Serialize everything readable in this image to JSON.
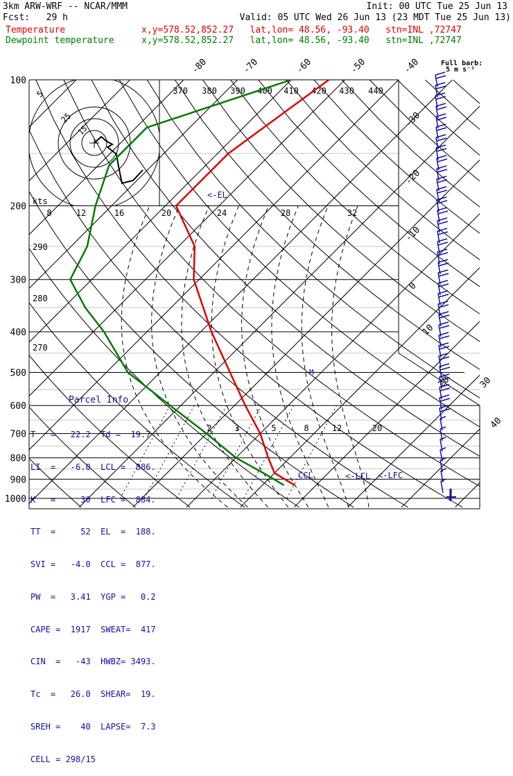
{
  "header": {
    "line1_left": "3km ARW-WRF -- NCAR/MMM",
    "line1_right": "Init: 00 UTC Tue 25 Jun 13",
    "line2_left": "Fcst:   29 h",
    "line2_right": "Valid: 05 UTC Wed 26 Jun 13 (23 MDT Tue 25 Jun 13)",
    "temp_label": "Temperature",
    "temp_info": "x,y=578.52,852.27   lat,lon= 48.56, -93.40   stn=INL ,72747",
    "dew_label": "Dewpoint temperature",
    "dew_info": "x,y=578.52,852.27   lat,lon= 48.56, -93.40   stn=INL ,72747"
  },
  "barb_legend": [
    "Full barb:",
    "5 m s⁻¹"
  ],
  "colors": {
    "temperature": "#e00000",
    "dewpoint": "#007a00",
    "barbs": "#1010a0",
    "info": "#1010a0"
  },
  "chart_data": {
    "type": "skew-t log-p",
    "y_axis_pressure_labels": [
      "100",
      "200",
      "300",
      "400",
      "500",
      "600",
      "700",
      "800",
      "900",
      "1000"
    ],
    "pressure_levels_hPa": [
      100,
      200,
      300,
      400,
      500,
      600,
      700,
      800,
      900,
      1000
    ],
    "isotherm_labels": [
      "-80",
      "-70",
      "-60",
      "-50",
      "-40",
      "-30",
      "-20",
      "-10",
      "0",
      "10",
      "20",
      "30",
      "40"
    ],
    "theta_labels": [
      "370",
      "380",
      "390",
      "400",
      "410",
      "420",
      "430",
      "440"
    ],
    "mixing_ratio_labels": [
      "2",
      "3",
      "5",
      "8",
      "12",
      "20"
    ],
    "upper_labels": [
      "8",
      "12",
      "16",
      "20",
      "24",
      "28",
      "32"
    ],
    "left_labels": [
      "290",
      "280",
      "270"
    ],
    "hodograph": {
      "ring_labels": [
        "5",
        "25",
        "15"
      ],
      "units": "kts"
    },
    "temperature": {
      "name": "Temperature",
      "points": [
        [
          100,
          -53
        ],
        [
          150,
          -58
        ],
        [
          200,
          -58
        ],
        [
          250,
          -47
        ],
        [
          300,
          -41
        ],
        [
          400,
          -28
        ],
        [
          500,
          -17
        ],
        [
          600,
          -8
        ],
        [
          700,
          0
        ],
        [
          800,
          6
        ],
        [
          870,
          10
        ],
        [
          930,
          16
        ]
      ]
    },
    "dewpoint": {
      "name": "Dewpoint temperature",
      "points": [
        [
          100,
          -60
        ],
        [
          130,
          -78
        ],
        [
          160,
          -78
        ],
        [
          200,
          -73
        ],
        [
          250,
          -67
        ],
        [
          300,
          -64
        ],
        [
          350,
          -56
        ],
        [
          400,
          -48
        ],
        [
          500,
          -36
        ],
        [
          600,
          -22
        ],
        [
          700,
          -10
        ],
        [
          800,
          0
        ],
        [
          880,
          9
        ],
        [
          930,
          14
        ]
      ]
    },
    "annotations": {
      "el": "<-EL",
      "lcl": "<-LCL",
      "lfc": "<-LFC",
      "ccl": "CCL",
      "m": "M"
    },
    "wind_barbs": "Full barb: 5 m s-1"
  },
  "parcel_info": {
    "title": "Parcel Info",
    "rows": [
      "T   =   22.2  Td =  19.7",
      "LI  =   -6.0  LCL =  886.",
      "K   =     30  LFC =  884.",
      "TT  =     52  EL  =  188.",
      "SVI =   -4.0  CCL =  877.",
      "PW  =   3.41  YGP =   0.2",
      "CAPE =  1917  SWEAT=  417",
      "CIN  =   -43  HWBZ= 3493.",
      "Tc  =   26.0  SHEAR=  19.",
      "SREH =    40  LAPSE=  7.3",
      "CELL = 298/15"
    ]
  }
}
